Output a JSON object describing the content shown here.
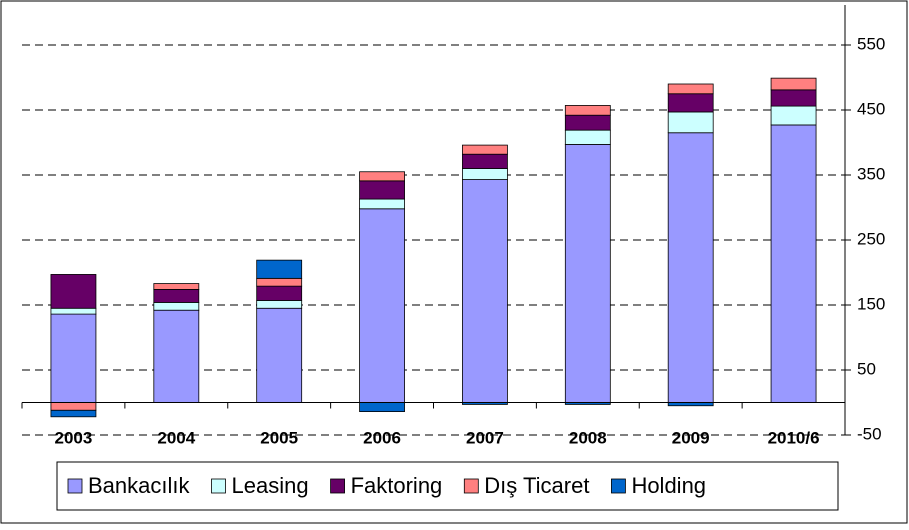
{
  "chart_data": {
    "type": "stacked_bar",
    "categories": [
      "2003",
      "2004",
      "2005",
      "2006",
      "2007",
      "2008",
      "2009",
      "2010/6"
    ],
    "series": [
      {
        "name": "Bankacılık",
        "color": "#9999ff",
        "values": [
          136,
          142,
          145,
          298,
          343,
          397,
          415,
          427
        ]
      },
      {
        "name": "Leasing",
        "color": "#ccffff",
        "values": [
          9,
          12,
          12,
          15,
          17,
          22,
          32,
          29
        ]
      },
      {
        "name": "Faktoring",
        "color": "#660066",
        "values": [
          52,
          20,
          22,
          28,
          22,
          23,
          28,
          25
        ]
      },
      {
        "name": "Dış Ticaret",
        "color": "#ff8080",
        "values": [
          -12,
          9,
          12,
          14,
          14,
          15,
          15,
          18
        ]
      },
      {
        "name": "Holding",
        "color": "#0066cc",
        "values": [
          -10,
          0,
          28,
          -14,
          -3,
          -3,
          -5,
          0
        ]
      }
    ],
    "ylim": [
      -50,
      550
    ],
    "yticks": [
      -50,
      50,
      150,
      250,
      350,
      450,
      550
    ],
    "grid": true,
    "legend": "bottom"
  }
}
